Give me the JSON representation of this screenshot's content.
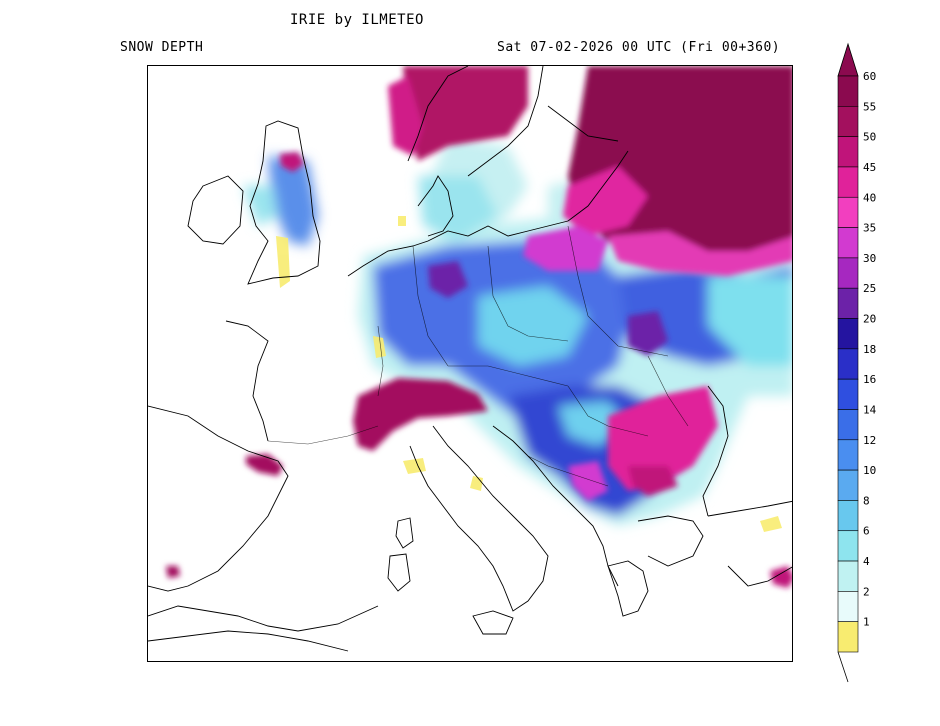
{
  "header": {
    "title": "IRIE by ILMETEO",
    "product": "SNOW DEPTH",
    "valid_time": "Sat 07-02-2026 00 UTC (Fri 00+360)"
  },
  "legend": {
    "levels": [
      {
        "label": "60",
        "color": "#8b0a4f"
      },
      {
        "label": "55",
        "color": "#a3105e"
      },
      {
        "label": "50",
        "color": "#c0147a"
      },
      {
        "label": "45",
        "color": "#e0229a"
      },
      {
        "label": "40",
        "color": "#f23fbf"
      },
      {
        "label": "35",
        "color": "#d23ad0"
      },
      {
        "label": "30",
        "color": "#a628c0"
      },
      {
        "label": "25",
        "color": "#6c22a8"
      },
      {
        "label": "20",
        "color": "#2414a0"
      },
      {
        "label": "18",
        "color": "#2a2fc8"
      },
      {
        "label": "16",
        "color": "#2f4fe0"
      },
      {
        "label": "14",
        "color": "#3a6ee8"
      },
      {
        "label": "12",
        "color": "#4a8ef0"
      },
      {
        "label": "10",
        "color": "#5aaaf0"
      },
      {
        "label": "8",
        "color": "#68c8ee"
      },
      {
        "label": "6",
        "color": "#8ee4ee"
      },
      {
        "label": "4",
        "color": "#c0f2f2"
      },
      {
        "label": "2",
        "color": "#e8fbfb"
      },
      {
        "label": "1",
        "color": "#f8ec70"
      }
    ]
  }
}
